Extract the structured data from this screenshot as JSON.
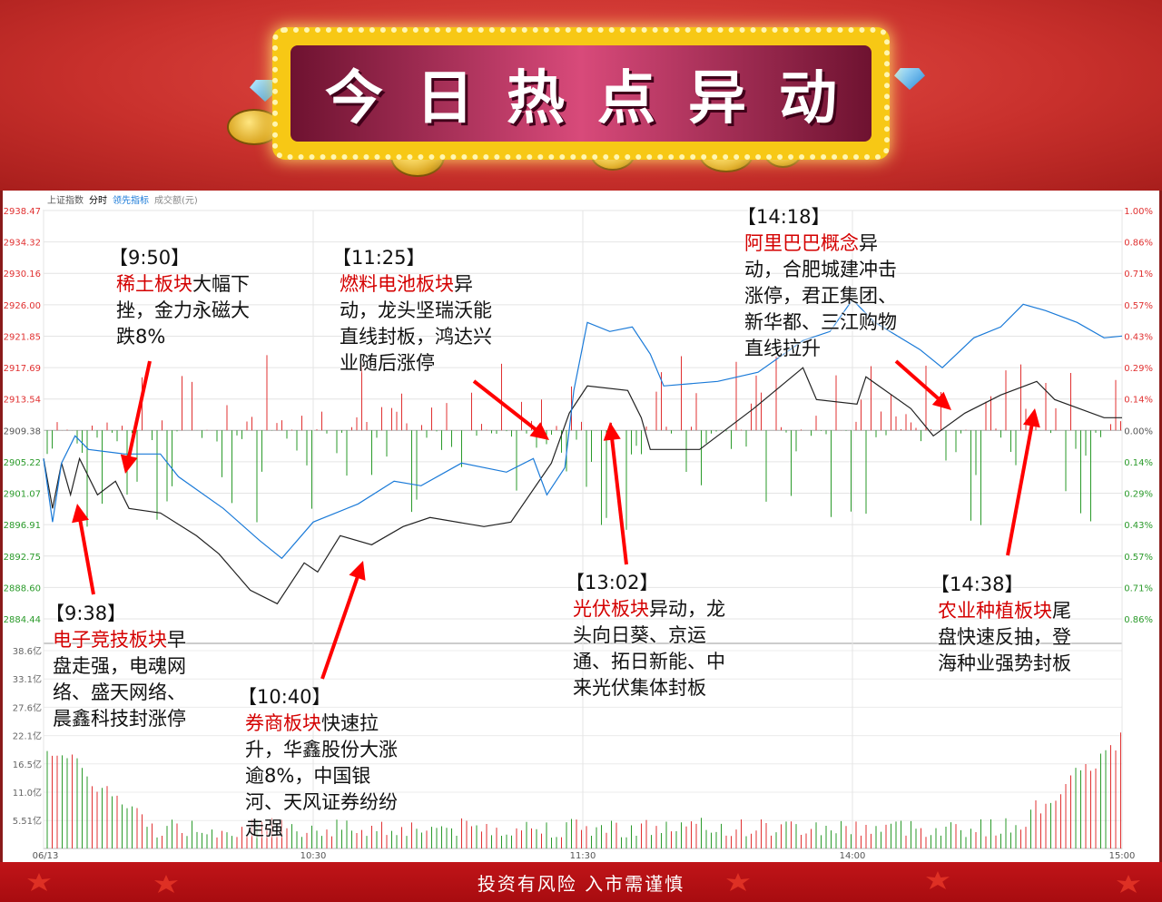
{
  "banner": {
    "title": "今日热点异动"
  },
  "tabs": [
    "上证指数",
    "分时",
    "领先指标",
    "成交额(元)"
  ],
  "footer": {
    "text": "投资有风险  入市需谨慎"
  },
  "colors": {
    "index_line": "#222222",
    "leading_line": "#1a7ad8",
    "up": "#e03030",
    "down": "#2a9a2a",
    "highlight": "#d40000"
  },
  "chart_data": {
    "type": "line",
    "ylim": [
      2884.44,
      2938.47
    ],
    "base": 2909.38,
    "price_ticks": [
      "2938.47",
      "2934.32",
      "2930.16",
      "2926.00",
      "2921.85",
      "2917.69",
      "2913.54",
      "2909.38",
      "2905.22",
      "2901.07",
      "2896.91",
      "2892.75",
      "2888.60",
      "2884.44"
    ],
    "pct_ticks": [
      "1.00%",
      "0.86%",
      "0.71%",
      "0.57%",
      "0.43%",
      "0.29%",
      "0.14%",
      "0.00%",
      "0.14%",
      "0.29%",
      "0.43%",
      "0.57%",
      "0.71%",
      "0.86%"
    ],
    "volume_ticks": [
      "38.6亿",
      "33.1亿",
      "27.6亿",
      "22.1亿",
      "16.5亿",
      "11.0亿",
      "5.51亿"
    ],
    "x_ticks": [
      "06/13",
      "10:30",
      "11:30",
      "14:00",
      "15:00"
    ],
    "series": [
      {
        "key": "index",
        "points": [
          [
            "09:30",
            2905.66
          ],
          [
            "09:32",
            2899.05
          ],
          [
            "09:34",
            2905.06
          ],
          [
            "09:36",
            2900.85
          ],
          [
            "09:38",
            2905.66
          ],
          [
            "09:42",
            2900.85
          ],
          [
            "09:46",
            2902.65
          ],
          [
            "09:49",
            2899.05
          ],
          [
            "09:56",
            2898.45
          ],
          [
            "10:04",
            2895.45
          ],
          [
            "10:09",
            2893.05
          ],
          [
            "10:16",
            2888.24
          ],
          [
            "10:22",
            2886.44
          ],
          [
            "10:28",
            2891.85
          ],
          [
            "10:31",
            2890.65
          ],
          [
            "10:36",
            2895.45
          ],
          [
            "10:43",
            2894.25
          ],
          [
            "10:50",
            2896.65
          ],
          [
            "10:56",
            2897.85
          ],
          [
            "11:08",
            2896.65
          ],
          [
            "11:14",
            2897.25
          ],
          [
            "11:23",
            2905.06
          ],
          [
            "11:27",
            2911.66
          ],
          [
            "13:01",
            2915.26
          ],
          [
            "13:10",
            2914.66
          ],
          [
            "13:13",
            2911.06
          ],
          [
            "13:15",
            2906.86
          ],
          [
            "13:26",
            2906.86
          ],
          [
            "13:38",
            2912.26
          ],
          [
            "13:49",
            2917.67
          ],
          [
            "13:52",
            2913.46
          ],
          [
            "14:01",
            2912.86
          ],
          [
            "14:03",
            2916.47
          ],
          [
            "14:13",
            2912.26
          ],
          [
            "14:18",
            2908.66
          ],
          [
            "14:25",
            2911.66
          ],
          [
            "14:33",
            2914.06
          ],
          [
            "14:41",
            2915.86
          ],
          [
            "14:45",
            2913.46
          ],
          [
            "14:56",
            2911.06
          ],
          [
            "15:00",
            2911.06
          ]
        ]
      },
      {
        "key": "leading",
        "points": [
          [
            "09:30",
            2905.66
          ],
          [
            "09:32",
            2897.25
          ],
          [
            "09:34",
            2905.06
          ],
          [
            "09:37",
            2908.66
          ],
          [
            "09:40",
            2906.86
          ],
          [
            "09:48",
            2906.26
          ],
          [
            "09:56",
            2906.26
          ],
          [
            "10:00",
            2903.26
          ],
          [
            "10:10",
            2899.05
          ],
          [
            "10:18",
            2894.85
          ],
          [
            "10:23",
            2892.45
          ],
          [
            "10:30",
            2897.25
          ],
          [
            "10:40",
            2899.65
          ],
          [
            "10:48",
            2902.65
          ],
          [
            "10:54",
            2902.05
          ],
          [
            "11:03",
            2905.06
          ],
          [
            "11:13",
            2903.86
          ],
          [
            "11:19",
            2905.66
          ],
          [
            "11:22",
            2900.85
          ],
          [
            "11:26",
            2904.46
          ],
          [
            "11:28",
            2914.66
          ],
          [
            "13:01",
            2923.67
          ],
          [
            "13:06",
            2922.47
          ],
          [
            "13:11",
            2923.07
          ],
          [
            "13:15",
            2919.47
          ],
          [
            "13:18",
            2915.26
          ],
          [
            "13:30",
            2915.86
          ],
          [
            "13:39",
            2917.07
          ],
          [
            "13:49",
            2921.27
          ],
          [
            "13:55",
            2922.47
          ],
          [
            "14:00",
            2926.67
          ],
          [
            "14:05",
            2923.67
          ],
          [
            "14:15",
            2920.07
          ],
          [
            "14:20",
            2917.67
          ],
          [
            "14:27",
            2921.63
          ],
          [
            "14:33",
            2923.07
          ],
          [
            "14:38",
            2926.07
          ],
          [
            "14:43",
            2925.23
          ],
          [
            "14:50",
            2923.67
          ],
          [
            "14:56",
            2921.63
          ],
          [
            "15:00",
            2921.87
          ]
        ]
      }
    ]
  },
  "annotations": [
    {
      "time": "【9:50】",
      "highlight": "稀土板块",
      "text": "大幅下挫，金力永磁大跌8%"
    },
    {
      "time": "【11:25】",
      "highlight": "燃料电池板块",
      "text": "异动，龙头坚瑞沃能直线封板，鸿达兴业随后涨停"
    },
    {
      "time": "【14:18】",
      "highlight": "阿里巴巴概念",
      "text": "异动，合肥城建冲击涨停，君正集团、新华都、三江购物直线拉升"
    },
    {
      "time": "【9:38】",
      "highlight": "电子竞技板块",
      "text": "早盘走强，电魂网络、盛天网络、晨鑫科技封涨停"
    },
    {
      "time": "【10:40】",
      "highlight": "券商板块",
      "text": "快速拉升，华鑫股份大涨逾8%，中国银河、天风证券纷纷走强"
    },
    {
      "time": "【13:02】",
      "highlight": "光伏板块",
      "text": "异动，龙头向日葵、京运通、拓日新能、中来光伏集体封板"
    },
    {
      "time": "【14:38】",
      "highlight": "农业种植板块",
      "text": "尾盘快速反抽，登海种业强势封板"
    }
  ]
}
